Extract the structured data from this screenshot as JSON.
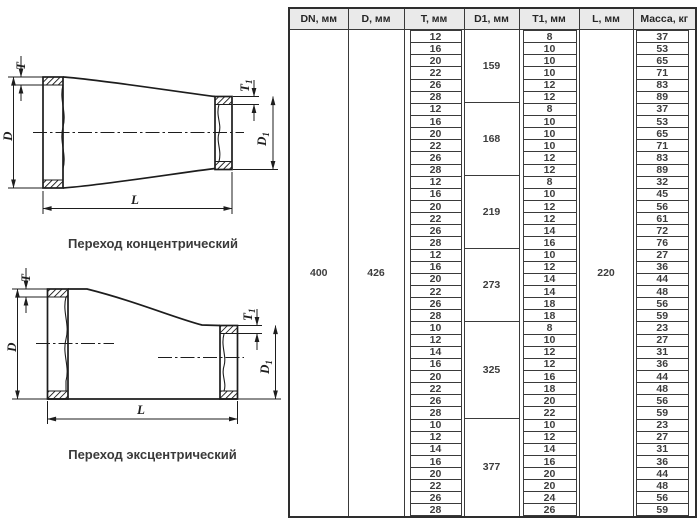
{
  "diagrams": {
    "concentric": {
      "caption": "Переход концентрический"
    },
    "eccentric": {
      "caption": "Переход эксцентрический"
    },
    "dim_labels": {
      "D": "D",
      "D1_base": "D",
      "D1_sub": "1",
      "T": "T",
      "T1_base": "T",
      "T1_sub": "1",
      "L": "L"
    }
  },
  "table": {
    "headers": [
      "DN, мм",
      "D, мм",
      "T, мм",
      "D1, мм",
      "T1, мм",
      "L, мм",
      "Масса, кг"
    ],
    "dn": "400",
    "d": "426",
    "l": "220",
    "blocks": [
      {
        "d1": "159",
        "rows": [
          {
            "t": "12",
            "t1": "8",
            "m": "37"
          },
          {
            "t": "16",
            "t1": "10",
            "m": "53"
          },
          {
            "t": "20",
            "t1": "10",
            "m": "65"
          },
          {
            "t": "22",
            "t1": "10",
            "m": "71"
          },
          {
            "t": "26",
            "t1": "12",
            "m": "83"
          },
          {
            "t": "28",
            "t1": "12",
            "m": "89"
          }
        ]
      },
      {
        "d1": "168",
        "rows": [
          {
            "t": "12",
            "t1": "8",
            "m": "37"
          },
          {
            "t": "16",
            "t1": "10",
            "m": "53"
          },
          {
            "t": "20",
            "t1": "10",
            "m": "65"
          },
          {
            "t": "22",
            "t1": "10",
            "m": "71"
          },
          {
            "t": "26",
            "t1": "12",
            "m": "83"
          },
          {
            "t": "28",
            "t1": "12",
            "m": "89"
          }
        ]
      },
      {
        "d1": "219",
        "rows": [
          {
            "t": "12",
            "t1": "8",
            "m": "32"
          },
          {
            "t": "16",
            "t1": "10",
            "m": "45"
          },
          {
            "t": "20",
            "t1": "12",
            "m": "56"
          },
          {
            "t": "22",
            "t1": "12",
            "m": "61"
          },
          {
            "t": "26",
            "t1": "14",
            "m": "72"
          },
          {
            "t": "28",
            "t1": "16",
            "m": "76"
          }
        ]
      },
      {
        "d1": "273",
        "rows": [
          {
            "t": "12",
            "t1": "10",
            "m": "27"
          },
          {
            "t": "16",
            "t1": "12",
            "m": "36"
          },
          {
            "t": "20",
            "t1": "14",
            "m": "44"
          },
          {
            "t": "22",
            "t1": "14",
            "m": "48"
          },
          {
            "t": "26",
            "t1": "18",
            "m": "56"
          },
          {
            "t": "28",
            "t1": "18",
            "m": "59"
          }
        ]
      },
      {
        "d1": "325",
        "rows": [
          {
            "t": "10",
            "t1": "8",
            "m": "23"
          },
          {
            "t": "12",
            "t1": "10",
            "m": "27"
          },
          {
            "t": "14",
            "t1": "12",
            "m": "31"
          },
          {
            "t": "16",
            "t1": "12",
            "m": "36"
          },
          {
            "t": "20",
            "t1": "16",
            "m": "44"
          },
          {
            "t": "22",
            "t1": "18",
            "m": "48"
          },
          {
            "t": "26",
            "t1": "20",
            "m": "56"
          },
          {
            "t": "28",
            "t1": "22",
            "m": "59"
          }
        ]
      },
      {
        "d1": "377",
        "rows": [
          {
            "t": "10",
            "t1": "10",
            "m": "23"
          },
          {
            "t": "12",
            "t1": "12",
            "m": "27"
          },
          {
            "t": "14",
            "t1": "14",
            "m": "31"
          },
          {
            "t": "16",
            "t1": "16",
            "m": "36"
          },
          {
            "t": "20",
            "t1": "20",
            "m": "44"
          },
          {
            "t": "22",
            "t1": "20",
            "m": "48"
          },
          {
            "t": "26",
            "t1": "24",
            "m": "56"
          },
          {
            "t": "28",
            "t1": "26",
            "m": "59"
          }
        ]
      }
    ]
  }
}
